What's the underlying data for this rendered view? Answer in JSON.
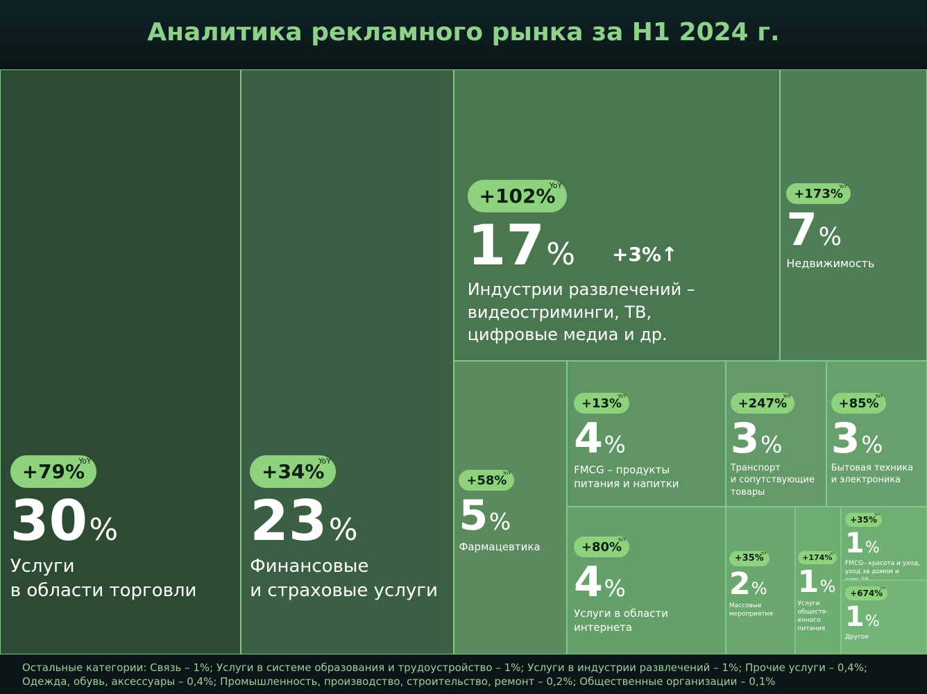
{
  "chart_data": {
    "type": "treemap",
    "title": "Аналитика рекламного рынка за H1 2024 г.",
    "categories": [
      "Услуги\nв области торговли",
      "Финансовые\nи страховые услуги",
      "Индустрии развлечений –\nвидеостриминги, ТВ,\nцифровые медиа и др.",
      "Недвижимость",
      "Фармацевтика",
      "FMCG – продукты\nпитания и напитки",
      "Транспорт\nи сопутствующие\nтовары",
      "Бытовая техника\nи электроника",
      "Услуги в области\nинтернета",
      "Массовые\nмероприятия",
      "Услуги\nобществ-\nенного\nпитания",
      "FMCG– красота и уход,\nуход за домом и семьёй",
      "Другое"
    ],
    "values": [
      30,
      23,
      17,
      7,
      5,
      4,
      3,
      3,
      4,
      2,
      1,
      1,
      1
    ],
    "value_labels": [
      "30%",
      "23%",
      "17%",
      "7%",
      "5%",
      "4%",
      "3%",
      "3%",
      "4%",
      "2%",
      "1%",
      "1%",
      "1%"
    ],
    "yoy_labels": [
      "+79%",
      "+34%",
      "+102%",
      "+173%",
      "+58%",
      "+13%",
      "+247%",
      "+85%",
      "+80%",
      "+35%",
      "+174%",
      "+35%",
      "+674%"
    ],
    "yoy_tag": "YoY",
    "annotation": "+3%↑",
    "footnote": [
      "Остальные категории: Связь – 1%; Услуги в системе образования и трудоустройство – 1%; Услуги в индустрии развлечений – 1%; Прочие услуги – 0,4%;",
      "Одежда, обувь, аксессуары – 0,4%; Промышленность, производство, строительство, ремонт – 0,2%;  Общественные организации – 0,1%"
    ]
  }
}
